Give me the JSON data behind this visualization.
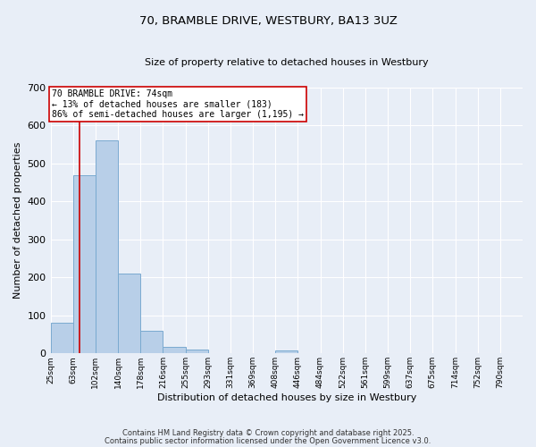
{
  "title": "70, BRAMBLE DRIVE, WESTBURY, BA13 3UZ",
  "subtitle": "Size of property relative to detached houses in Westbury",
  "xlabel": "Distribution of detached houses by size in Westbury",
  "ylabel": "Number of detached properties",
  "bar_values": [
    80,
    470,
    560,
    210,
    60,
    17,
    10,
    0,
    0,
    0,
    8,
    0,
    0,
    0,
    0,
    0,
    0,
    0,
    0,
    0,
    0
  ],
  "bar_color": "#b8cfe8",
  "bar_edge_color": "#7aaad0",
  "xtick_labels": [
    "25sqm",
    "63sqm",
    "102sqm",
    "140sqm",
    "178sqm",
    "216sqm",
    "255sqm",
    "293sqm",
    "331sqm",
    "369sqm",
    "408sqm",
    "446sqm",
    "484sqm",
    "522sqm",
    "561sqm",
    "599sqm",
    "637sqm",
    "675sqm",
    "714sqm",
    "752sqm",
    "790sqm"
  ],
  "ylim": [
    0,
    700
  ],
  "yticks": [
    0,
    100,
    200,
    300,
    400,
    500,
    600,
    700
  ],
  "property_line_idx": 1.282,
  "annotation_text": "70 BRAMBLE DRIVE: 74sqm\n← 13% of detached houses are smaller (183)\n86% of semi-detached houses are larger (1,195) →",
  "annotation_box_color": "#ffffff",
  "annotation_border_color": "#cc0000",
  "bg_color": "#e8eef7",
  "grid_color": "#ffffff",
  "footer_line1": "Contains HM Land Registry data © Crown copyright and database right 2025.",
  "footer_line2": "Contains public sector information licensed under the Open Government Licence v3.0."
}
